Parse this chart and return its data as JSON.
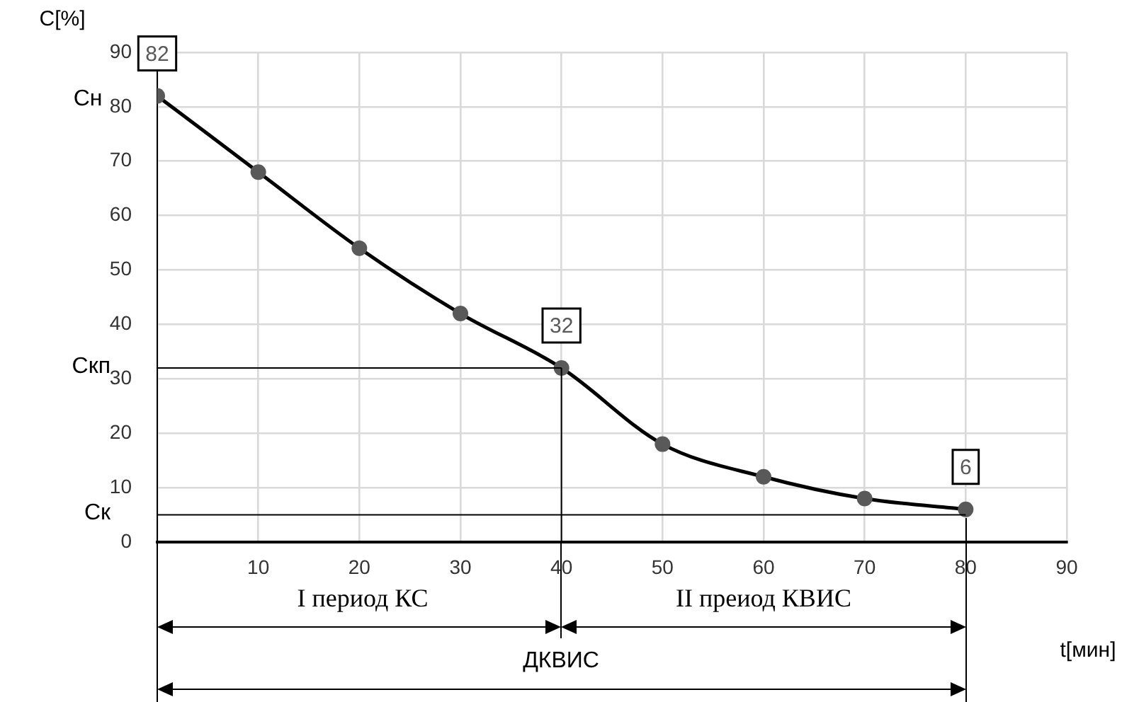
{
  "chart_data": {
    "type": "line",
    "xlabel": "t[мин]",
    "ylabel": "C[%]",
    "x": [
      0,
      10,
      20,
      30,
      40,
      50,
      60,
      70,
      80
    ],
    "series": [
      {
        "color": "#000000",
        "values": [
          82,
          68,
          54,
          42,
          32,
          18,
          12,
          8,
          6
        ],
        "value_labels": [
          "82",
          null,
          null,
          null,
          "32",
          null,
          null,
          null,
          "6"
        ]
      }
    ],
    "xlim": [
      0,
      90
    ],
    "xticks": [
      {
        "value": 0,
        "label": null
      },
      10,
      20,
      30,
      40,
      50,
      60,
      70,
      80,
      90
    ],
    "ylim": [
      0,
      90
    ],
    "yticks": [
      0,
      10,
      20,
      30,
      40,
      50,
      60,
      70,
      80,
      90
    ],
    "grid": true,
    "legend": false,
    "marker": "circle",
    "line_style": "solid",
    "annotations": [
      "Сн",
      "I период КС",
      "II преиод КВИС",
      "ДКВИС"
    ],
    "ref_lines": [
      {
        "axis": "y",
        "value": 32,
        "label": "Скп"
      },
      {
        "axis": "y",
        "value": 5,
        "label": "Ск"
      },
      {
        "axis": "x",
        "value": 40
      }
    ]
  }
}
